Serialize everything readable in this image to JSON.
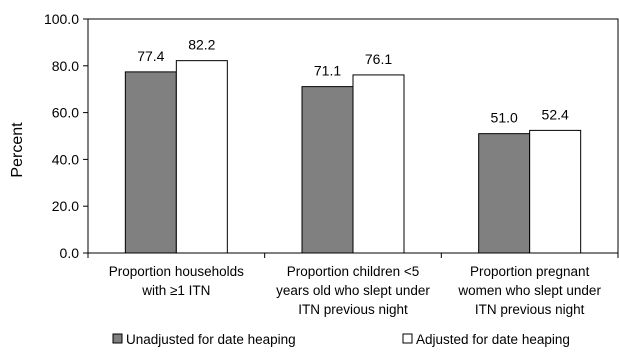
{
  "chart_data": {
    "type": "bar",
    "title": "",
    "xlabel": "",
    "ylabel": "Percent",
    "ylim": [
      0,
      100
    ],
    "yticks": [
      "0.0",
      "20.0",
      "40.0",
      "60.0",
      "80.0",
      "100.0"
    ],
    "grid": false,
    "legend_position": "bottom",
    "categories": [
      [
        "Proportion households",
        "with ≥1 ITN"
      ],
      [
        "Proportion children <5",
        "years old who slept under",
        "ITN previous night"
      ],
      [
        "Proportion pregnant",
        "women who slept under",
        "ITN previous night"
      ]
    ],
    "series": [
      {
        "name": "Unadjusted for date heaping",
        "color": "#808080",
        "values": [
          77.4,
          71.1,
          51.0
        ],
        "labels": [
          "77.4",
          "71.1",
          "51.0"
        ]
      },
      {
        "name": "Adjusted for date heaping",
        "color": "#ffffff",
        "values": [
          82.2,
          76.1,
          52.4
        ],
        "labels": [
          "82.2",
          "76.1",
          "52.4"
        ]
      }
    ]
  }
}
